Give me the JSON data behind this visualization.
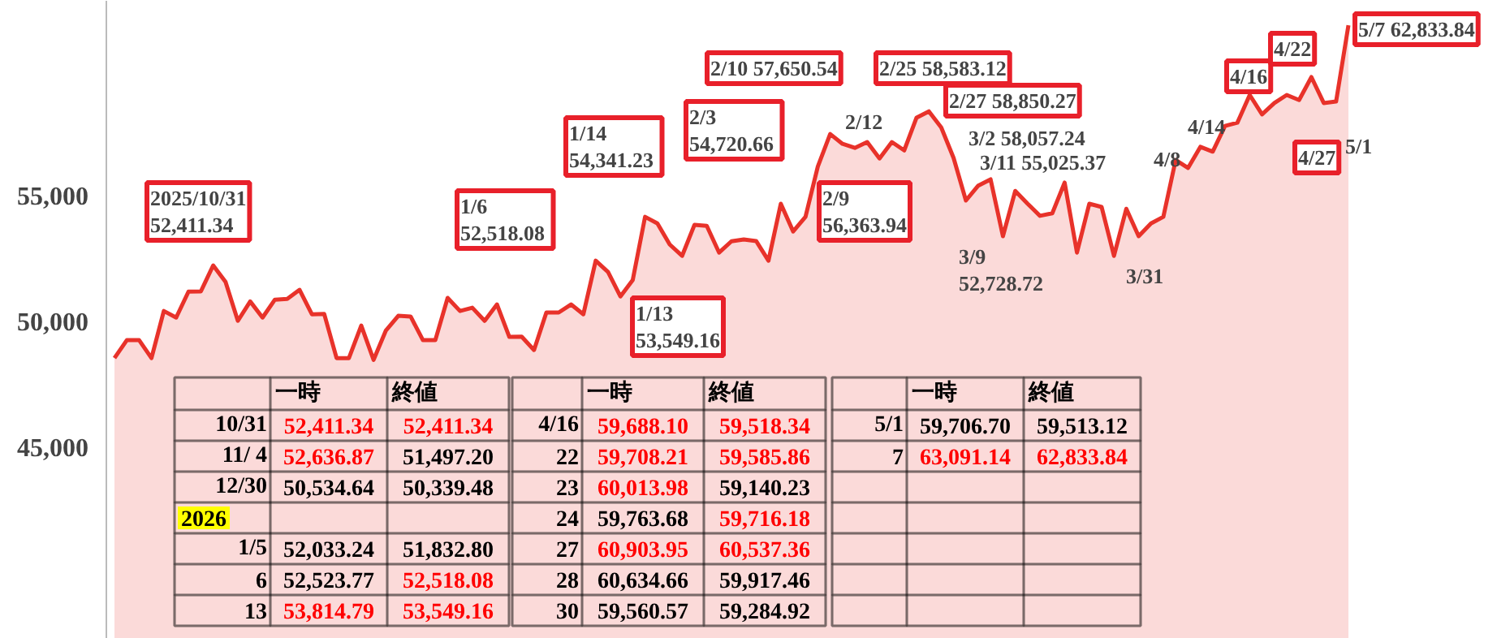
{
  "chart_data": {
    "type": "area",
    "categories": [
      null,
      null,
      null,
      null,
      null,
      null,
      null,
      null,
      null,
      null,
      null,
      null,
      null,
      null,
      null,
      null,
      null,
      null,
      null,
      null,
      null,
      null,
      null,
      null,
      null,
      null,
      null,
      null,
      null,
      null,
      null,
      null,
      null,
      null,
      null,
      null,
      null,
      null,
      null,
      null,
      null,
      null,
      null,
      null,
      null,
      null,
      null,
      null,
      null,
      null,
      null,
      null,
      null,
      null,
      null,
      null,
      null,
      null,
      null,
      null,
      null,
      null,
      null,
      null,
      null,
      null,
      null,
      null,
      null,
      null,
      null,
      null,
      null,
      null,
      null,
      null,
      null,
      null,
      null,
      null,
      null,
      null,
      null,
      null,
      null,
      null,
      null,
      null,
      null,
      null,
      null,
      null,
      null,
      null,
      null,
      null,
      null,
      null,
      null,
      null,
      null
    ],
    "series": [
      {
        "color": "#e8322a",
        "values": [
          48550,
          49260,
          49260,
          48550,
          50420,
          50160,
          51190,
          51200,
          52230,
          51580,
          50030,
          50800,
          50160,
          50870,
          50900,
          51260,
          50290,
          50300,
          48550,
          48550,
          49840,
          48480,
          49650,
          50230,
          50200,
          49260,
          49260,
          50940,
          50420,
          50550,
          50030,
          50680,
          49390,
          49400,
          48870,
          50360,
          50360,
          50680,
          50290,
          52420,
          51970,
          51000,
          51650,
          54160,
          53900,
          53060,
          52610,
          53840,
          53800,
          52740,
          53190,
          53260,
          53200,
          52420,
          54680,
          53580,
          54160,
          56160,
          57450,
          57060,
          56900,
          57130,
          56480,
          57130,
          56800,
          58100,
          58350,
          57710,
          56500,
          54810,
          55400,
          55650,
          53390,
          55190,
          54680,
          54200,
          54300,
          55520,
          52740,
          54680,
          54550,
          52610,
          54480,
          53390,
          53900,
          54160,
          56420,
          56100,
          56940,
          56750,
          57770,
          57900,
          59000,
          58230,
          58680,
          59000,
          58800,
          59710,
          58680,
          58740,
          61770
        ]
      }
    ],
    "ylim": [
      37400,
      62740
    ],
    "yticks": [
      {
        "value": 45000,
        "label": "45,000"
      },
      {
        "value": 50000,
        "label": "50,000"
      },
      {
        "value": 55000,
        "label": "55,000"
      }
    ],
    "grid": false,
    "tick_labels": "y",
    "annotations": [
      "2025/10/31\n  52,411.34",
      "1/6\n 52,518.08",
      "1/14\n 54,341.23",
      "1/13\n53,549.16",
      "2/3\n 54,720.66",
      "2/10 57,650.54",
      "2/9\n56,363.94",
      "2/12",
      "2/25 58,583.12",
      "2/27 58,850.27",
      "3/2   58,057.24",
      "3/11   55,025.37",
      "3/9\n52,728.72",
      "3/31",
      "4/8",
      "4/14",
      "4/16",
      "4/22",
      "4/27",
      "5/1",
      "5/7 62,833.84",
      "一時",
      "終値",
      "10/31",
      "52,411.34",
      "52,411.34",
      "11/ 4",
      "52,636.87",
      "51,497.20",
      "12/30",
      "50,534.64",
      "50,339.48",
      "2026",
      "1/5",
      "52,033.24",
      "51,832.80",
      "6",
      "52,523.77",
      "52,518.08",
      "13",
      "53,814.79",
      "53,549.16",
      "一時",
      "終値",
      "4/16",
      "59,688.10",
      "59,518.34",
      "22",
      "59,708.21",
      "59,585.86",
      "23",
      "60,013.98",
      "59,140.23",
      "24",
      "59,763.68",
      "59,716.18",
      "27",
      "60,903.95",
      "60,537.36",
      "28",
      "60,634.66",
      "59,917.46",
      "30",
      "59,560.57",
      "59,284.92",
      "一時",
      "終値",
      "5/1",
      "59,706.70",
      "59,513.12",
      "7",
      "63,091.14",
      "62,833.84"
    ]
  }
}
